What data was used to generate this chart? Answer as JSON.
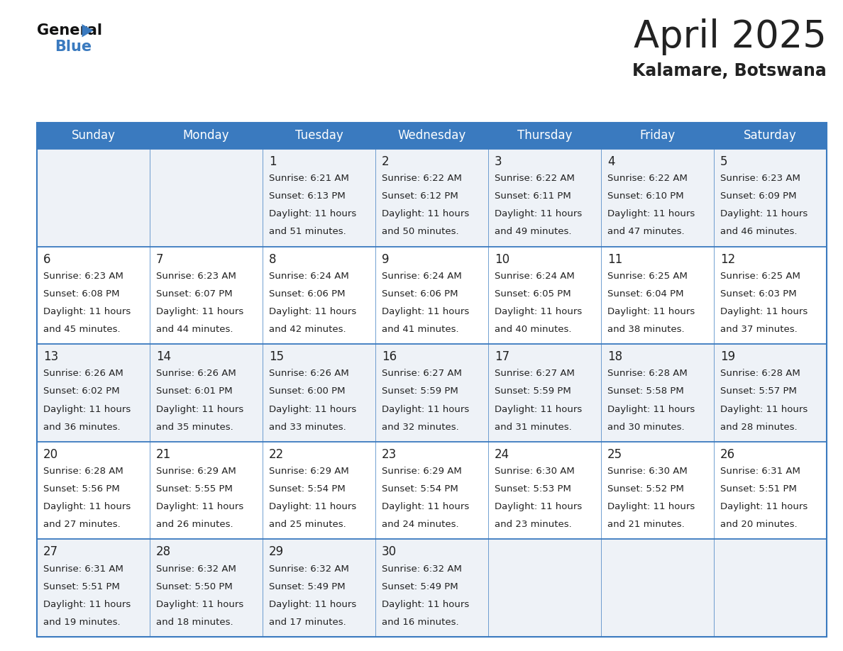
{
  "title": "April 2025",
  "subtitle": "Kalamare, Botswana",
  "header_bg_color": "#3a7abf",
  "header_text_color": "#ffffff",
  "cell_bg_color_odd": "#eef2f7",
  "cell_bg_color_even": "#ffffff",
  "grid_line_color": "#3a7abf",
  "day_names": [
    "Sunday",
    "Monday",
    "Tuesday",
    "Wednesday",
    "Thursday",
    "Friday",
    "Saturday"
  ],
  "days_data": [
    {
      "day": 0,
      "week": 0,
      "date": "",
      "sunrise": "",
      "sunset": "",
      "daylight": ""
    },
    {
      "day": 1,
      "week": 0,
      "date": "",
      "sunrise": "",
      "sunset": "",
      "daylight": ""
    },
    {
      "day": 2,
      "week": 0,
      "date": "1",
      "sunrise": "6:21 AM",
      "sunset": "6:13 PM",
      "daylight": "11 hours and 51 minutes."
    },
    {
      "day": 3,
      "week": 0,
      "date": "2",
      "sunrise": "6:22 AM",
      "sunset": "6:12 PM",
      "daylight": "11 hours and 50 minutes."
    },
    {
      "day": 4,
      "week": 0,
      "date": "3",
      "sunrise": "6:22 AM",
      "sunset": "6:11 PM",
      "daylight": "11 hours and 49 minutes."
    },
    {
      "day": 5,
      "week": 0,
      "date": "4",
      "sunrise": "6:22 AM",
      "sunset": "6:10 PM",
      "daylight": "11 hours and 47 minutes."
    },
    {
      "day": 6,
      "week": 0,
      "date": "5",
      "sunrise": "6:23 AM",
      "sunset": "6:09 PM",
      "daylight": "11 hours and 46 minutes."
    },
    {
      "day": 0,
      "week": 1,
      "date": "6",
      "sunrise": "6:23 AM",
      "sunset": "6:08 PM",
      "daylight": "11 hours and 45 minutes."
    },
    {
      "day": 1,
      "week": 1,
      "date": "7",
      "sunrise": "6:23 AM",
      "sunset": "6:07 PM",
      "daylight": "11 hours and 44 minutes."
    },
    {
      "day": 2,
      "week": 1,
      "date": "8",
      "sunrise": "6:24 AM",
      "sunset": "6:06 PM",
      "daylight": "11 hours and 42 minutes."
    },
    {
      "day": 3,
      "week": 1,
      "date": "9",
      "sunrise": "6:24 AM",
      "sunset": "6:06 PM",
      "daylight": "11 hours and 41 minutes."
    },
    {
      "day": 4,
      "week": 1,
      "date": "10",
      "sunrise": "6:24 AM",
      "sunset": "6:05 PM",
      "daylight": "11 hours and 40 minutes."
    },
    {
      "day": 5,
      "week": 1,
      "date": "11",
      "sunrise": "6:25 AM",
      "sunset": "6:04 PM",
      "daylight": "11 hours and 38 minutes."
    },
    {
      "day": 6,
      "week": 1,
      "date": "12",
      "sunrise": "6:25 AM",
      "sunset": "6:03 PM",
      "daylight": "11 hours and 37 minutes."
    },
    {
      "day": 0,
      "week": 2,
      "date": "13",
      "sunrise": "6:26 AM",
      "sunset": "6:02 PM",
      "daylight": "11 hours and 36 minutes."
    },
    {
      "day": 1,
      "week": 2,
      "date": "14",
      "sunrise": "6:26 AM",
      "sunset": "6:01 PM",
      "daylight": "11 hours and 35 minutes."
    },
    {
      "day": 2,
      "week": 2,
      "date": "15",
      "sunrise": "6:26 AM",
      "sunset": "6:00 PM",
      "daylight": "11 hours and 33 minutes."
    },
    {
      "day": 3,
      "week": 2,
      "date": "16",
      "sunrise": "6:27 AM",
      "sunset": "5:59 PM",
      "daylight": "11 hours and 32 minutes."
    },
    {
      "day": 4,
      "week": 2,
      "date": "17",
      "sunrise": "6:27 AM",
      "sunset": "5:59 PM",
      "daylight": "11 hours and 31 minutes."
    },
    {
      "day": 5,
      "week": 2,
      "date": "18",
      "sunrise": "6:28 AM",
      "sunset": "5:58 PM",
      "daylight": "11 hours and 30 minutes."
    },
    {
      "day": 6,
      "week": 2,
      "date": "19",
      "sunrise": "6:28 AM",
      "sunset": "5:57 PM",
      "daylight": "11 hours and 28 minutes."
    },
    {
      "day": 0,
      "week": 3,
      "date": "20",
      "sunrise": "6:28 AM",
      "sunset": "5:56 PM",
      "daylight": "11 hours and 27 minutes."
    },
    {
      "day": 1,
      "week": 3,
      "date": "21",
      "sunrise": "6:29 AM",
      "sunset": "5:55 PM",
      "daylight": "11 hours and 26 minutes."
    },
    {
      "day": 2,
      "week": 3,
      "date": "22",
      "sunrise": "6:29 AM",
      "sunset": "5:54 PM",
      "daylight": "11 hours and 25 minutes."
    },
    {
      "day": 3,
      "week": 3,
      "date": "23",
      "sunrise": "6:29 AM",
      "sunset": "5:54 PM",
      "daylight": "11 hours and 24 minutes."
    },
    {
      "day": 4,
      "week": 3,
      "date": "24",
      "sunrise": "6:30 AM",
      "sunset": "5:53 PM",
      "daylight": "11 hours and 23 minutes."
    },
    {
      "day": 5,
      "week": 3,
      "date": "25",
      "sunrise": "6:30 AM",
      "sunset": "5:52 PM",
      "daylight": "11 hours and 21 minutes."
    },
    {
      "day": 6,
      "week": 3,
      "date": "26",
      "sunrise": "6:31 AM",
      "sunset": "5:51 PM",
      "daylight": "11 hours and 20 minutes."
    },
    {
      "day": 0,
      "week": 4,
      "date": "27",
      "sunrise": "6:31 AM",
      "sunset": "5:51 PM",
      "daylight": "11 hours and 19 minutes."
    },
    {
      "day": 1,
      "week": 4,
      "date": "28",
      "sunrise": "6:32 AM",
      "sunset": "5:50 PM",
      "daylight": "11 hours and 18 minutes."
    },
    {
      "day": 2,
      "week": 4,
      "date": "29",
      "sunrise": "6:32 AM",
      "sunset": "5:49 PM",
      "daylight": "11 hours and 17 minutes."
    },
    {
      "day": 3,
      "week": 4,
      "date": "30",
      "sunrise": "6:32 AM",
      "sunset": "5:49 PM",
      "daylight": "11 hours and 16 minutes."
    },
    {
      "day": 4,
      "week": 4,
      "date": "",
      "sunrise": "",
      "sunset": "",
      "daylight": ""
    },
    {
      "day": 5,
      "week": 4,
      "date": "",
      "sunrise": "",
      "sunset": "",
      "daylight": ""
    },
    {
      "day": 6,
      "week": 4,
      "date": "",
      "sunrise": "",
      "sunset": "",
      "daylight": ""
    }
  ],
  "num_weeks": 5,
  "title_fontsize": 38,
  "subtitle_fontsize": 17,
  "header_fontsize": 12,
  "date_fontsize": 12,
  "cell_fontsize": 9.5,
  "text_color": "#222222",
  "logo_general_color": "#111111",
  "logo_blue_color": "#3a7abf",
  "logo_triangle_color": "#3a7abf"
}
